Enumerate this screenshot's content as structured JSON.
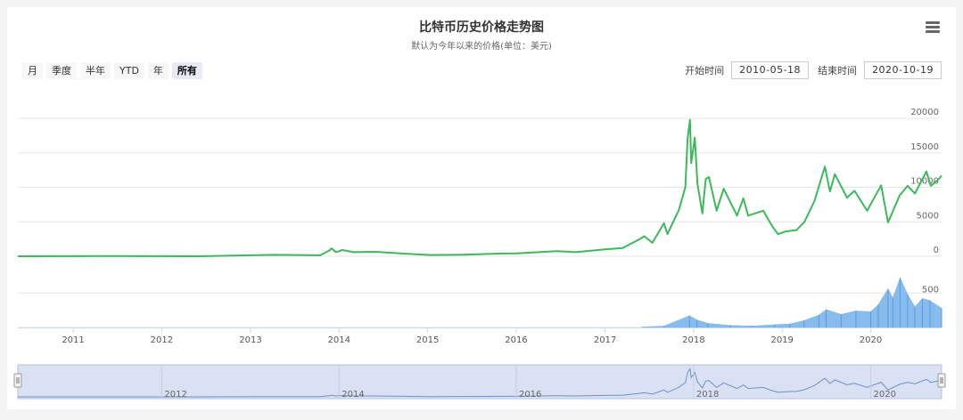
{
  "title": "比特币历史价格走势图",
  "subtitle": "默认为今年以来的价格(单位：美元)",
  "range_buttons": [
    {
      "label": "月",
      "active": false
    },
    {
      "label": "季度",
      "active": false
    },
    {
      "label": "半年",
      "active": false
    },
    {
      "label": "YTD",
      "active": false
    },
    {
      "label": "年",
      "active": false
    },
    {
      "label": "所有",
      "active": true
    }
  ],
  "start_label": "开始时间",
  "start_date": "2010-05-18",
  "end_label": "结束时间",
  "end_date": "2020-10-19",
  "colors": {
    "price_line": "#3cb95a",
    "volume": "#7cb5ec",
    "navigator_bg": "#d9e1f2",
    "navigator_line": "#6f8fcf"
  },
  "chart_data": {
    "type": "line",
    "title": "比特币历史价格走势图",
    "subtitle": "默认为今年以来的价格(单位：美元)",
    "x_range": [
      "2010-05-18",
      "2020-10-19"
    ],
    "year_ticks": [
      "2011",
      "2012",
      "2013",
      "2014",
      "2015",
      "2016",
      "2017",
      "2018",
      "2019",
      "2020"
    ],
    "navigator_ticks": [
      "2012",
      "2014",
      "2016",
      "2018",
      "2020"
    ],
    "price": {
      "name": "",
      "yticks": [
        0,
        5000,
        10000,
        15000,
        20000
      ],
      "ylim": [
        0,
        20000
      ],
      "points": [
        [
          "2010-05-18",
          0
        ],
        [
          "2011-06-08",
          30
        ],
        [
          "2012-06-01",
          6
        ],
        [
          "2013-04-10",
          200
        ],
        [
          "2013-10-15",
          140
        ],
        [
          "2013-11-20",
          800
        ],
        [
          "2013-12-01",
          1150
        ],
        [
          "2013-12-18",
          600
        ],
        [
          "2014-01-15",
          900
        ],
        [
          "2014-03-01",
          600
        ],
        [
          "2014-06-01",
          650
        ],
        [
          "2014-10-01",
          380
        ],
        [
          "2015-01-14",
          180
        ],
        [
          "2015-06-01",
          230
        ],
        [
          "2015-11-04",
          400
        ],
        [
          "2016-01-01",
          430
        ],
        [
          "2016-06-18",
          750
        ],
        [
          "2016-09-01",
          600
        ],
        [
          "2017-01-01",
          1000
        ],
        [
          "2017-03-15",
          1200
        ],
        [
          "2017-05-25",
          2500
        ],
        [
          "2017-06-12",
          2900
        ],
        [
          "2017-07-15",
          1950
        ],
        [
          "2017-09-01",
          4800
        ],
        [
          "2017-09-15",
          3200
        ],
        [
          "2017-11-01",
          6700
        ],
        [
          "2017-11-28",
          10000
        ],
        [
          "2017-12-07",
          17000
        ],
        [
          "2017-12-17",
          19800
        ],
        [
          "2017-12-22",
          13500
        ],
        [
          "2018-01-06",
          17200
        ],
        [
          "2018-01-17",
          10500
        ],
        [
          "2018-02-06",
          6200
        ],
        [
          "2018-02-20",
          11200
        ],
        [
          "2018-03-05",
          11500
        ],
        [
          "2018-04-06",
          6600
        ],
        [
          "2018-05-05",
          9800
        ],
        [
          "2018-06-29",
          5900
        ],
        [
          "2018-07-25",
          8400
        ],
        [
          "2018-08-14",
          5900
        ],
        [
          "2018-10-15",
          6600
        ],
        [
          "2018-11-20",
          4400
        ],
        [
          "2018-12-15",
          3200
        ],
        [
          "2019-01-15",
          3600
        ],
        [
          "2019-03-01",
          3800
        ],
        [
          "2019-04-03",
          5000
        ],
        [
          "2019-05-14",
          8000
        ],
        [
          "2019-06-26",
          13000
        ],
        [
          "2019-07-17",
          9400
        ],
        [
          "2019-08-06",
          11900
        ],
        [
          "2019-09-25",
          8500
        ],
        [
          "2019-10-26",
          9500
        ],
        [
          "2019-12-17",
          6600
        ],
        [
          "2020-02-13",
          10300
        ],
        [
          "2020-03-12",
          4900
        ],
        [
          "2020-04-29",
          8800
        ],
        [
          "2020-06-01",
          10200
        ],
        [
          "2020-07-01",
          9100
        ],
        [
          "2020-08-17",
          12300
        ],
        [
          "2020-09-05",
          10200
        ],
        [
          "2020-10-10",
          11300
        ],
        [
          "2020-10-19",
          11700
        ]
      ]
    },
    "volume": {
      "name": "",
      "yticks": [
        0,
        500
      ],
      "ylim": [
        0,
        800
      ],
      "points": [
        [
          "2017-06-01",
          5
        ],
        [
          "2017-09-01",
          20
        ],
        [
          "2017-12-15",
          170
        ],
        [
          "2018-01-15",
          110
        ],
        [
          "2018-03-01",
          60
        ],
        [
          "2018-06-01",
          30
        ],
        [
          "2018-09-01",
          20
        ],
        [
          "2018-12-01",
          40
        ],
        [
          "2019-02-01",
          50
        ],
        [
          "2019-04-01",
          100
        ],
        [
          "2019-06-01",
          180
        ],
        [
          "2019-07-01",
          260
        ],
        [
          "2019-09-01",
          190
        ],
        [
          "2019-11-01",
          240
        ],
        [
          "2020-01-01",
          230
        ],
        [
          "2020-02-01",
          330
        ],
        [
          "2020-03-12",
          560
        ],
        [
          "2020-04-01",
          430
        ],
        [
          "2020-05-01",
          720
        ],
        [
          "2020-06-01",
          480
        ],
        [
          "2020-07-01",
          300
        ],
        [
          "2020-08-01",
          420
        ],
        [
          "2020-09-01",
          390
        ],
        [
          "2020-10-19",
          280
        ]
      ]
    }
  }
}
